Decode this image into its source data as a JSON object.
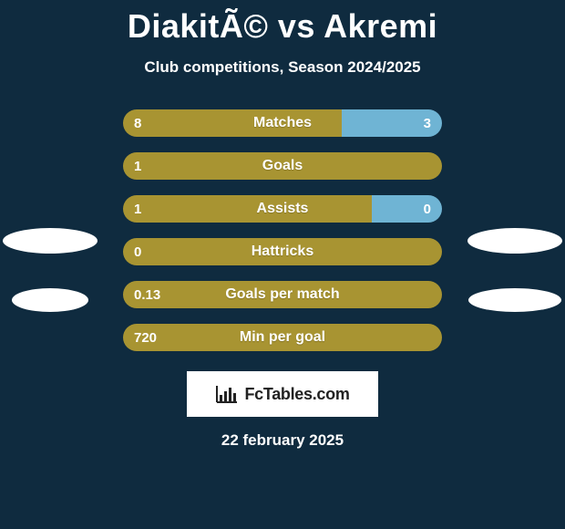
{
  "header": {
    "title": "DiakitÃ© vs Akremi",
    "subtitle": "Club competitions, Season 2024/2025"
  },
  "palette": {
    "left_color": "#a89432",
    "right_color": "#6fb4d4",
    "background": "#0f2b3f",
    "text": "#ffffff",
    "logo_bg": "#ffffff",
    "logo_text": "#222222"
  },
  "stats": {
    "type": "split-bar",
    "bar_style": {
      "height": 30,
      "border_radius": 15,
      "gap": 17,
      "label_fontsize": 16,
      "value_fontsize": 15,
      "label_fontweight": 700,
      "value_fontweight": 700
    },
    "rows": [
      {
        "label": "Matches",
        "left_value": "8",
        "right_value": "3",
        "left_pct": 68.5,
        "right_pct": 31.5,
        "show_right": true
      },
      {
        "label": "Goals",
        "left_value": "1",
        "right_value": "",
        "left_pct": 100,
        "right_pct": 0,
        "show_right": false
      },
      {
        "label": "Assists",
        "left_value": "1",
        "right_value": "0",
        "left_pct": 78,
        "right_pct": 22,
        "show_right": true
      },
      {
        "label": "Hattricks",
        "left_value": "0",
        "right_value": "",
        "left_pct": 100,
        "right_pct": 0,
        "show_right": false
      },
      {
        "label": "Goals per match",
        "left_value": "0.13",
        "right_value": "",
        "left_pct": 100,
        "right_pct": 0,
        "show_right": false
      },
      {
        "label": "Min per goal",
        "left_value": "720",
        "right_value": "",
        "left_pct": 100,
        "right_pct": 0,
        "show_right": false
      }
    ]
  },
  "side_ovals": {
    "left": {
      "count": 2,
      "color": "#ffffff"
    },
    "right": {
      "count": 2,
      "color": "#ffffff"
    }
  },
  "footer": {
    "logo_text": "FcTables.com",
    "date": "22 february 2025"
  }
}
